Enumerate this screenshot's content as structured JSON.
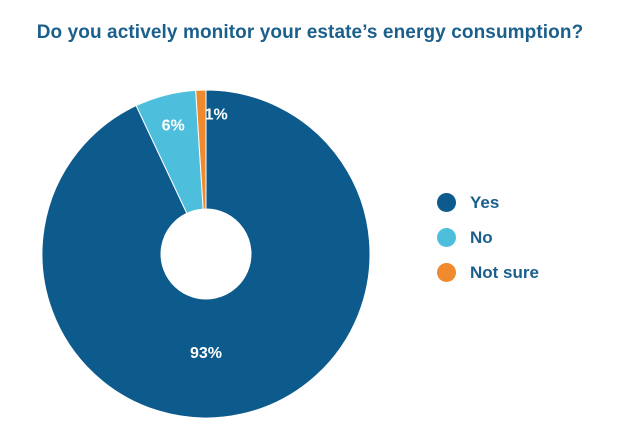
{
  "chart_data": {
    "type": "pie",
    "title": "Do you actively monitor your estate’s energy consumption?",
    "donut": true,
    "categories": [
      "Yes",
      "No",
      "Not sure"
    ],
    "values": [
      93,
      6,
      1
    ],
    "labels": [
      "93%",
      "6%",
      "1%"
    ],
    "colors": [
      "#0d5a8c",
      "#4dbedb",
      "#ef8a2e"
    ],
    "legend_position": "right"
  }
}
